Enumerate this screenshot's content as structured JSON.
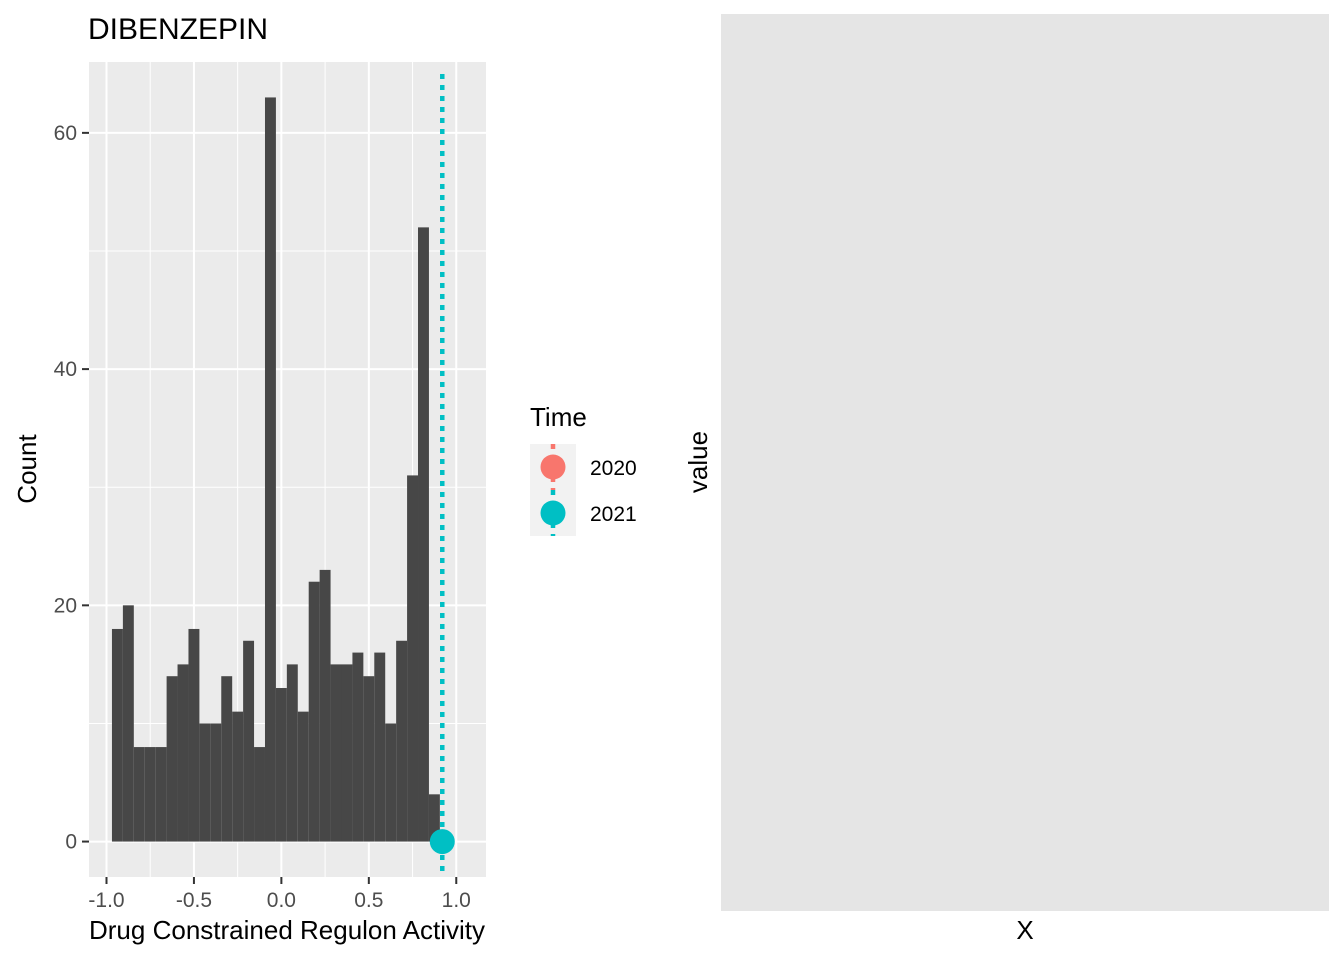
{
  "chart_data": [
    {
      "type": "bar",
      "subtype": "histogram",
      "title": "DIBENZEPIN",
      "xlabel": "Drug Constrained Regulon Activity",
      "ylabel": "Count",
      "xlim": [
        -1.1,
        1.17
      ],
      "ylim": [
        -3,
        66
      ],
      "xticks": [
        -1.0,
        -0.5,
        0.0,
        0.5,
        1.0
      ],
      "xtick_labels": [
        "-1.0",
        "-0.5",
        "0.0",
        "0.5",
        "1.0"
      ],
      "yticks": [
        0,
        20,
        40,
        60
      ],
      "ytick_labels": [
        "0",
        "20",
        "40",
        "60"
      ],
      "grid": true,
      "bin_width": 0.0625,
      "bin_centers": [
        -0.9375,
        -0.875,
        -0.8125,
        -0.75,
        -0.6875,
        -0.625,
        -0.5625,
        -0.5,
        -0.4375,
        -0.375,
        -0.3125,
        -0.25,
        -0.1875,
        -0.125,
        -0.0625,
        0.0,
        0.0625,
        0.125,
        0.1875,
        0.25,
        0.3125,
        0.375,
        0.4375,
        0.5,
        0.5625,
        0.625,
        0.6875,
        0.75,
        0.8125,
        0.875,
        0.9375,
        1.0
      ],
      "values": [
        18,
        20,
        8,
        8,
        8,
        14,
        15,
        18,
        10,
        10,
        14,
        11,
        17,
        8,
        63,
        13,
        15,
        11,
        22,
        23,
        15,
        15,
        16,
        14,
        16,
        10,
        17,
        31,
        52,
        4,
        0,
        0
      ],
      "bar_color": "#474747",
      "reference_lines": [
        {
          "series": "2021",
          "x": 0.92,
          "style": "dotted",
          "color": "#00BFC4"
        }
      ],
      "points": [
        {
          "series": "2021",
          "x": 0.92,
          "y": 0,
          "color": "#00BFC4"
        }
      ],
      "legend": {
        "title": "Time",
        "placement": "right",
        "entries": [
          {
            "name": "2020",
            "color": "#F8766D"
          },
          {
            "name": "2021",
            "color": "#00BFC4"
          }
        ]
      }
    },
    {
      "type": "scatter",
      "xlabel": "X",
      "ylabel": "value",
      "grid": false,
      "series": []
    }
  ]
}
